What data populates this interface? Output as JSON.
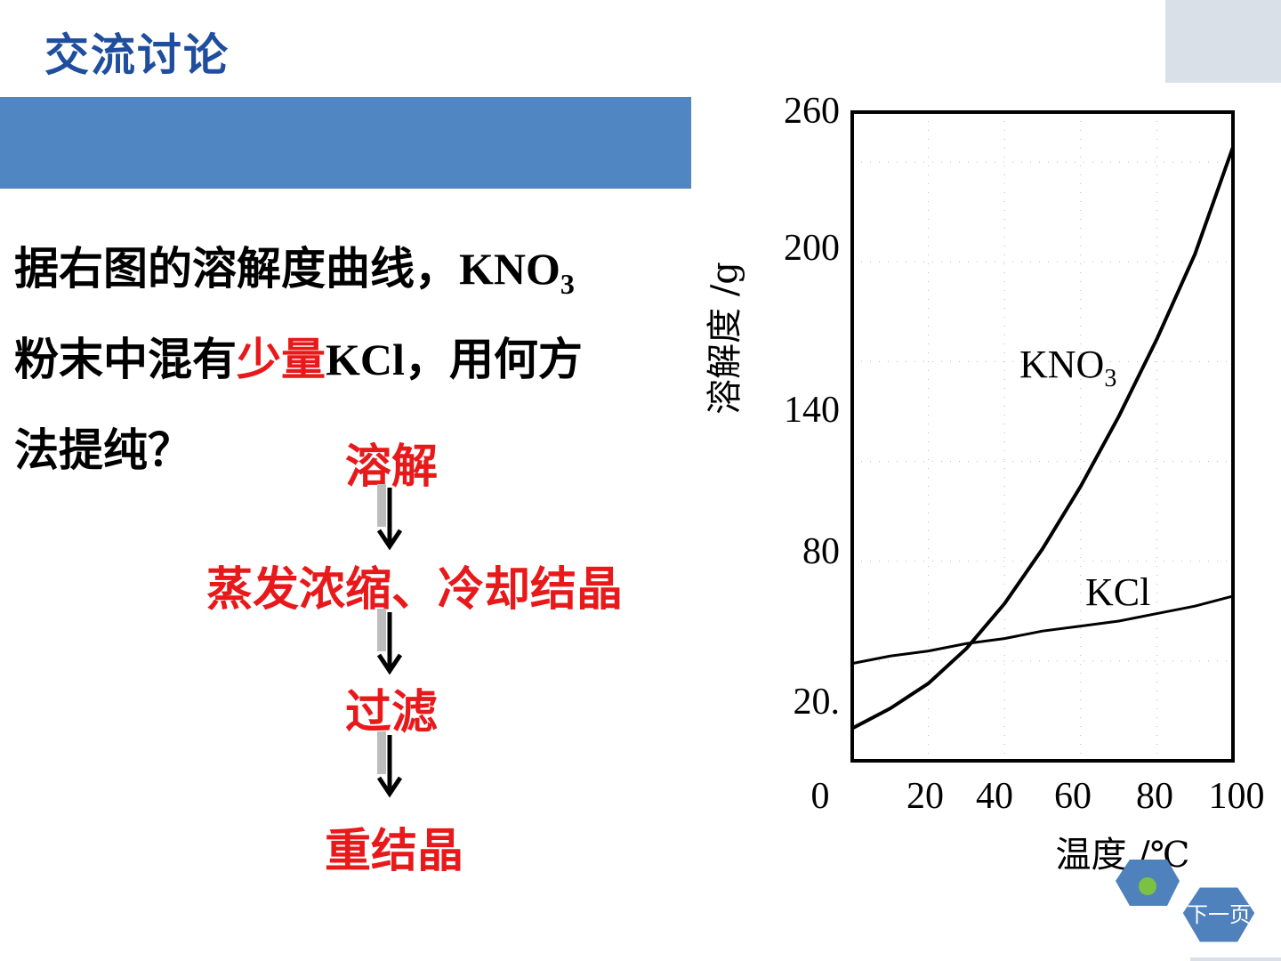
{
  "slide": {
    "title": "交流讨论",
    "question": {
      "line1_a": "据右图的溶解度曲线，",
      "line1_b": "KNO",
      "line1_sub": "3",
      "line2_a": "粉末中混有",
      "line2_red": "少量",
      "line2_b": "KCl",
      "line2_c": "，用何方",
      "line3": "法提纯？"
    },
    "steps": [
      "溶解",
      "蒸发浓缩、冷却结晶",
      "过滤",
      "重结晶"
    ],
    "colors": {
      "title": "#1f4e9e",
      "band": "#5086c1",
      "step": "#e8191b",
      "nav": "#4f81bd"
    },
    "nav": {
      "next_label": "下一页"
    }
  },
  "chart_data": {
    "type": "line",
    "title": "",
    "xlabel": "温度 /℃",
    "ylabel": "溶解度 /g",
    "xlim": [
      0,
      100
    ],
    "ylim": [
      0,
      260
    ],
    "x_ticks": [
      "0",
      "20",
      "40",
      "60",
      "80",
      "100"
    ],
    "y_ticks": [
      "260",
      "200",
      "140",
      "80",
      "20."
    ],
    "series": [
      {
        "name": "KNO",
        "name_sub": "3",
        "x": [
          0,
          10,
          20,
          30,
          40,
          50,
          60,
          70,
          80,
          90,
          100
        ],
        "y": [
          13,
          21,
          31,
          45,
          63,
          85,
          110,
          138,
          169,
          203,
          246
        ]
      },
      {
        "name": "KCl",
        "x": [
          0,
          10,
          20,
          30,
          40,
          50,
          60,
          70,
          80,
          90,
          100
        ],
        "y": [
          39,
          42,
          44,
          47,
          49,
          52,
          54,
          56,
          59,
          62,
          66
        ]
      }
    ]
  }
}
